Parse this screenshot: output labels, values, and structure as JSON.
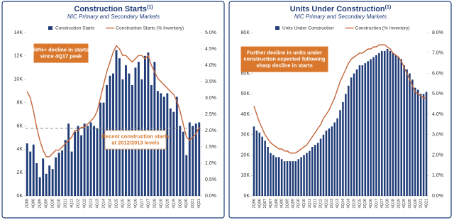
{
  "chart_data": [
    {
      "type": "bar",
      "title": "Construction Starts",
      "title_note": "(1)",
      "subtitle": "NIC Primary and Secondary Markets",
      "categories": [
        "2Q08",
        null,
        "4Q08",
        null,
        "2Q09",
        null,
        "4Q09",
        null,
        "2Q10",
        null,
        "4Q10",
        null,
        "2Q11",
        null,
        "4Q11",
        null,
        "2Q12",
        null,
        "4Q12",
        null,
        "2Q13",
        null,
        "4Q13",
        null,
        "2Q14",
        null,
        "4Q14",
        null,
        "2Q15",
        null,
        "4Q15",
        null,
        "2Q16",
        null,
        "4Q16",
        null,
        "2Q17",
        null,
        "4Q17",
        null,
        "2Q18",
        null,
        "4Q18",
        null,
        "2Q19",
        null,
        "4Q19",
        null,
        "2Q20",
        null,
        "4Q20",
        null,
        "2Q21",
        null,
        "4Q21"
      ],
      "series": [
        {
          "name": "Construction Starts",
          "color": "#1f3c78",
          "type": "bar",
          "values": [
            4.5,
            3.8,
            4.4,
            2.8,
            1.6,
            3.2,
            1.9,
            2.6,
            2.3,
            3.3,
            3.7,
            3.9,
            4.8,
            6.2,
            3.8,
            5.5,
            6.0,
            5.2,
            6.2,
            6.0,
            6.3,
            6.0,
            5.8,
            8.0,
            8.0,
            9.5,
            10.3,
            10.5,
            12.5,
            11.8,
            10.0,
            11.2,
            10.5,
            9.5,
            11.0,
            11.5,
            10.0,
            12.0,
            12.3,
            9.5,
            11.5,
            9.0,
            8.8,
            8.5,
            8.8,
            7.5,
            7.2,
            8.5,
            6.0,
            5.5,
            3.5,
            6.3,
            6.0,
            6.2,
            6.3
          ]
        },
        {
          "name": "Construction Starts (% Inventory)",
          "color": "#c5663a",
          "type": "line",
          "axis": "y2",
          "values": [
            3.2,
            3.0,
            2.6,
            2.1,
            1.7,
            1.4,
            1.2,
            1.2,
            1.3,
            1.4,
            1.4,
            1.5,
            1.6,
            1.7,
            1.8,
            2.0,
            2.0,
            2.1,
            2.1,
            2.2,
            2.3,
            2.4,
            2.6,
            3.0,
            3.4,
            3.8,
            4.1,
            4.4,
            4.6,
            4.5,
            4.3,
            4.3,
            4.2,
            4.1,
            4.2,
            4.3,
            4.3,
            4.2,
            4.3,
            4.0,
            3.8,
            3.6,
            3.5,
            3.4,
            3.3,
            3.2,
            3.1,
            2.9,
            2.6,
            2.2,
            1.8,
            1.7,
            1.8,
            1.9,
            2.1
          ]
        }
      ],
      "ylim": [
        0,
        14
      ],
      "yticks": [
        {
          "value": 0,
          "label": "0K"
        },
        {
          "value": 2,
          "label": "2K"
        },
        {
          "value": 4,
          "label": "4K"
        },
        {
          "value": 6,
          "label": "6K"
        },
        {
          "value": 8,
          "label": "8K"
        },
        {
          "value": 10,
          "label": "10K"
        },
        {
          "value": 12,
          "label": "12K"
        },
        {
          "value": 14,
          "label": "14K"
        }
      ],
      "y2lim": [
        0,
        5
      ],
      "y2ticks": [
        {
          "value": 0,
          "label": "0.0%"
        },
        {
          "value": 0.5,
          "label": "0.5%"
        },
        {
          "value": 1,
          "label": "1.0%"
        },
        {
          "value": 1.5,
          "label": "1.5%"
        },
        {
          "value": 2,
          "label": "2.0%"
        },
        {
          "value": 2.5,
          "label": "2.5%"
        },
        {
          "value": 3,
          "label": "3.0%"
        },
        {
          "value": 3.5,
          "label": "3.5%"
        },
        {
          "value": 4,
          "label": "4.0%"
        },
        {
          "value": 4.5,
          "label": "4.5%"
        },
        {
          "value": 5,
          "label": "5.0%"
        }
      ],
      "reference_line": 5.8,
      "annotations": [
        {
          "lines": [
            "50%+ decline in starts",
            "since 4Q17 peak"
          ],
          "style": "filled"
        },
        {
          "lines": [
            "Recent construction starts",
            "at 2012/2013 levels"
          ],
          "style": "outlined"
        }
      ]
    },
    {
      "type": "bar",
      "title": "Units Under Construction",
      "title_note": "(1)",
      "subtitle": "NIC Primary and Secondary Markets",
      "categories": [
        "2Q06",
        null,
        "4Q06",
        null,
        "2Q07",
        null,
        "4Q07",
        null,
        "2Q08",
        null,
        "4Q08",
        null,
        "2Q09",
        null,
        "4Q09",
        null,
        "2Q10",
        null,
        "4Q10",
        null,
        "2Q11",
        null,
        "4Q11",
        null,
        "2Q12",
        null,
        "4Q12",
        null,
        "2Q13",
        null,
        "4Q13",
        null,
        "2Q14",
        null,
        "4Q14",
        null,
        "2Q15",
        null,
        "4Q15",
        null,
        "2Q16",
        null,
        "4Q16",
        null,
        "2Q17",
        null,
        "4Q17",
        null,
        "2Q18",
        null,
        "4Q18",
        null,
        "2Q19",
        null,
        "4Q19",
        null,
        "2Q20",
        null,
        "4Q20",
        null,
        "2Q21",
        null,
        "4Q21"
      ],
      "series": [
        {
          "name": "Units Under Construction",
          "color": "#1f3c78",
          "type": "bar",
          "values": [
            34,
            32,
            31,
            29,
            27,
            24,
            21,
            20,
            19,
            19,
            18,
            17,
            17,
            17,
            17,
            17,
            18,
            19,
            20,
            21,
            22,
            24,
            25,
            26,
            28,
            30,
            32,
            33,
            34,
            36,
            38,
            42,
            46,
            50,
            54,
            58,
            60,
            62,
            64,
            64,
            65,
            66,
            67,
            68,
            69,
            70,
            71,
            71,
            72,
            71,
            70,
            69,
            68,
            67,
            64,
            62,
            60,
            57,
            53,
            52,
            50,
            50,
            51
          ]
        },
        {
          "name": "Construction (% Inventory)",
          "color": "#c5663a",
          "type": "line",
          "axis": "y2",
          "values": [
            4.4,
            4.0,
            3.6,
            3.3,
            3.0,
            2.8,
            2.6,
            2.5,
            2.4,
            2.3,
            2.3,
            2.2,
            2.2,
            2.1,
            2.1,
            2.1,
            2.2,
            2.3,
            2.4,
            2.5,
            2.7,
            2.9,
            3.1,
            3.3,
            3.5,
            3.8,
            4.0,
            4.2,
            4.5,
            4.8,
            5.2,
            5.6,
            5.9,
            6.2,
            6.5,
            6.7,
            6.8,
            6.9,
            7.0,
            7.0,
            7.1,
            7.2,
            7.2,
            7.3,
            7.3,
            7.4,
            7.4,
            7.4,
            7.3,
            7.2,
            7.0,
            6.9,
            6.8,
            6.6,
            6.3,
            6.0,
            5.7,
            5.4,
            5.1,
            5.0,
            4.9,
            4.8,
            4.8
          ]
        }
      ],
      "ylim": [
        0,
        80
      ],
      "yticks": [
        {
          "value": 0,
          "label": "0K"
        },
        {
          "value": 10,
          "label": "10K"
        },
        {
          "value": 20,
          "label": "20K"
        },
        {
          "value": 30,
          "label": "30K"
        },
        {
          "value": 40,
          "label": "40K"
        },
        {
          "value": 50,
          "label": "50K"
        },
        {
          "value": 60,
          "label": "60K"
        },
        {
          "value": 70,
          "label": "70K"
        },
        {
          "value": 80,
          "label": "80K"
        }
      ],
      "y2lim": [
        0,
        8
      ],
      "y2ticks": [
        {
          "value": 0,
          "label": "0.0%"
        },
        {
          "value": 1,
          "label": "1.0%"
        },
        {
          "value": 2,
          "label": "2.0%"
        },
        {
          "value": 3,
          "label": "3.0%"
        },
        {
          "value": 4,
          "label": "4.0%"
        },
        {
          "value": 5,
          "label": "5.0%"
        },
        {
          "value": 6,
          "label": "6.0%"
        },
        {
          "value": 7,
          "label": "7.0%"
        },
        {
          "value": 8,
          "label": "8.0%"
        }
      ],
      "annotations": [
        {
          "lines": [
            "Further decline in units under",
            "construction expected following",
            "sharp decline in starts"
          ],
          "style": "filled"
        }
      ]
    }
  ]
}
